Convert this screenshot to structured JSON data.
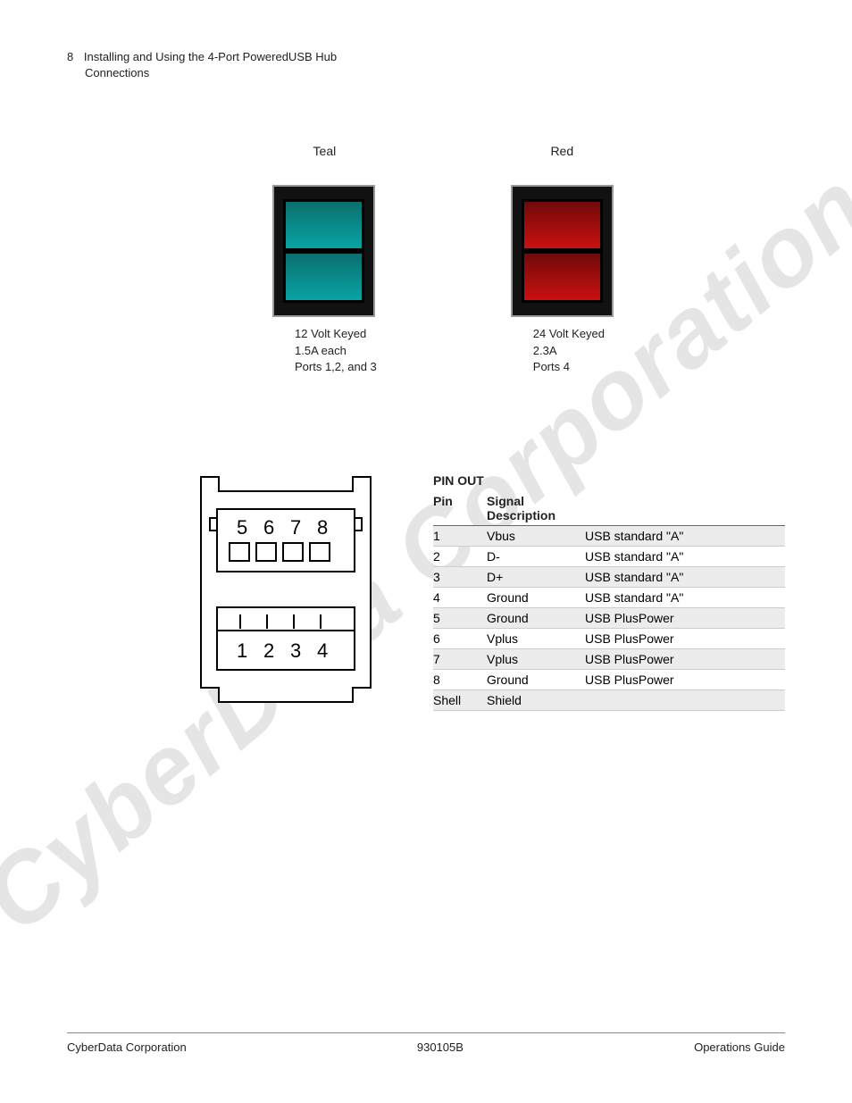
{
  "header": {
    "page_number": "8",
    "title_line1": "Installing and Using the 4-Port PoweredUSB Hub",
    "title_line2": "Connections"
  },
  "watermark_text": "CyberData Corporation",
  "connectors": {
    "teal": {
      "name": "Teal",
      "image_border_color": "#999999",
      "image_bg": "#111111",
      "slot_color_top": "#0a6b6b",
      "slot_color_bottom": "#0aa7a7",
      "caption_line1": "12 Volt Keyed",
      "caption_line2": "1.5A each",
      "caption_line3": "Ports 1,2, and 3"
    },
    "red": {
      "name": "Red",
      "image_border_color": "#999999",
      "image_bg": "#111111",
      "slot_color_top": "#6b0a0a",
      "slot_color_bottom": "#d01010",
      "caption_line1": "24 Volt Keyed",
      "caption_line2": "2.3A",
      "caption_line3": "Ports 4"
    }
  },
  "diagram": {
    "top_labels": [
      "5",
      "6",
      "7",
      "8"
    ],
    "bottom_labels": [
      "1",
      "2",
      "3",
      "4"
    ],
    "stroke_color": "#000000",
    "fill_color": "#ffffff",
    "label_fontsize": 22
  },
  "pinout": {
    "title": "PIN OUT",
    "header_pin": "Pin",
    "header_desc": "Signal Description",
    "alt_row_bg": "#ececec",
    "border_color": "#cccccc",
    "header_border_color": "#666666",
    "rows": [
      {
        "pin": "1",
        "signal": "Vbus",
        "desc": "USB standard \"A\"",
        "alt": true
      },
      {
        "pin": "2",
        "signal": "D-",
        "desc": "USB standard \"A\"",
        "alt": false
      },
      {
        "pin": "3",
        "signal": "D+",
        "desc": "USB standard \"A\"",
        "alt": true
      },
      {
        "pin": "4",
        "signal": "Ground",
        "desc": "USB standard \"A\"",
        "alt": false
      },
      {
        "pin": "5",
        "signal": "Ground",
        "desc": "USB PlusPower",
        "alt": true
      },
      {
        "pin": "6",
        "signal": "Vplus",
        "desc": "USB PlusPower",
        "alt": false
      },
      {
        "pin": "7",
        "signal": "Vplus",
        "desc": "USB PlusPower",
        "alt": true
      },
      {
        "pin": "8",
        "signal": "Ground",
        "desc": "USB PlusPower",
        "alt": false
      },
      {
        "pin": "Shell",
        "signal": "Shield",
        "desc": "",
        "alt": true
      }
    ]
  },
  "footer": {
    "left": "CyberData Corporation",
    "center": "930105B",
    "right": "Operations Guide"
  }
}
